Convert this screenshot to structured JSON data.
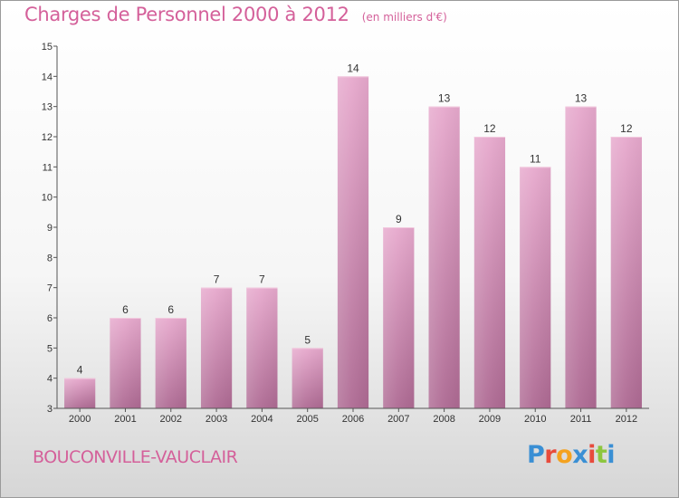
{
  "header": {
    "title": "Charges de Personnel 2000 à 2012",
    "unit": "(en milliers d'€)"
  },
  "footer": {
    "commune": "BOUCONVILLE-VAUCLAIR",
    "logo_letters": [
      "P",
      "r",
      "o",
      "x",
      "i",
      "t",
      "i"
    ],
    "logo_colors": [
      "#3a8fd4",
      "#e84b3c",
      "#f4a21f",
      "#3a8fd4",
      "#e84b3c",
      "#8dc63f",
      "#3a8fd4"
    ]
  },
  "chart_data": {
    "type": "bar",
    "title": "Charges de Personnel 2000 à 2012",
    "subtitle": "(en milliers d'€)",
    "categories": [
      "2000",
      "2001",
      "2002",
      "2003",
      "2004",
      "2005",
      "2006",
      "2007",
      "2008",
      "2009",
      "2010",
      "2011",
      "2012"
    ],
    "values": [
      4,
      6,
      6,
      7,
      7,
      5,
      14,
      9,
      13,
      12,
      11,
      13,
      12
    ],
    "ylim": [
      3,
      15
    ],
    "yticks": [
      3,
      4,
      5,
      6,
      7,
      8,
      9,
      10,
      11,
      12,
      13,
      14,
      15
    ],
    "grid": false,
    "bar_color": "#d98bb6",
    "data_labels": true
  }
}
